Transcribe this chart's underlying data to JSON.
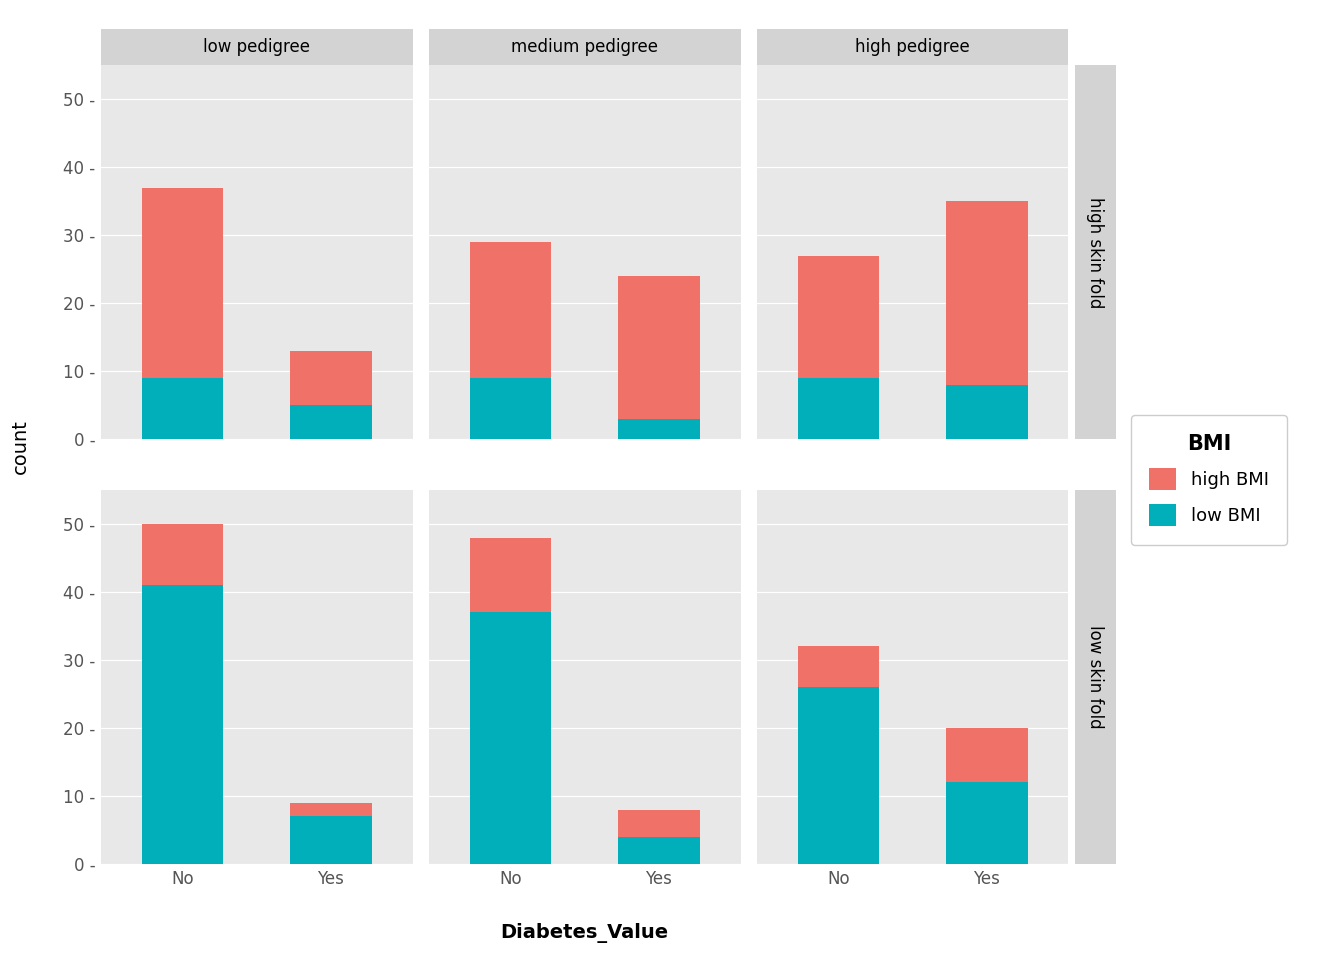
{
  "col_labels": [
    "low pedigree",
    "medium pedigree",
    "high pedigree"
  ],
  "row_labels": [
    "high skin fold",
    "low skin fold"
  ],
  "x_categories": [
    "No",
    "Yes"
  ],
  "color_high_bmi": "#F07167",
  "color_low_bmi": "#00AFB9",
  "background_panel": "#E8E8E8",
  "background_strip_col": "#D3D3D3",
  "background_strip_row": "#D3D3D3",
  "background_fig": "#FFFFFF",
  "grid_color": "#FFFFFF",
  "data": {
    "high skin fold": {
      "low pedigree": {
        "No": {
          "low_bmi": 9,
          "high_bmi": 28
        },
        "Yes": {
          "low_bmi": 5,
          "high_bmi": 8
        }
      },
      "medium pedigree": {
        "No": {
          "low_bmi": 9,
          "high_bmi": 20
        },
        "Yes": {
          "low_bmi": 3,
          "high_bmi": 21
        }
      },
      "high pedigree": {
        "No": {
          "low_bmi": 9,
          "high_bmi": 18
        },
        "Yes": {
          "low_bmi": 8,
          "high_bmi": 27
        }
      }
    },
    "low skin fold": {
      "low pedigree": {
        "No": {
          "low_bmi": 41,
          "high_bmi": 9
        },
        "Yes": {
          "low_bmi": 7,
          "high_bmi": 2
        }
      },
      "medium pedigree": {
        "No": {
          "low_bmi": 37,
          "high_bmi": 11
        },
        "Yes": {
          "low_bmi": 4,
          "high_bmi": 4
        }
      },
      "high pedigree": {
        "No": {
          "low_bmi": 26,
          "high_bmi": 6
        },
        "Yes": {
          "low_bmi": 12,
          "high_bmi": 8
        }
      }
    }
  },
  "xlabel": "Diabetes_Value",
  "ylabel": "count",
  "legend_title": "BMI",
  "legend_labels": [
    "high BMI",
    "low BMI"
  ],
  "yticks": [
    0,
    10,
    20,
    30,
    40,
    50
  ],
  "ylim_max": 55,
  "bar_width": 0.55,
  "axis_fontsize": 14,
  "tick_fontsize": 12,
  "strip_fontsize": 12,
  "legend_title_fontsize": 15,
  "legend_item_fontsize": 13
}
